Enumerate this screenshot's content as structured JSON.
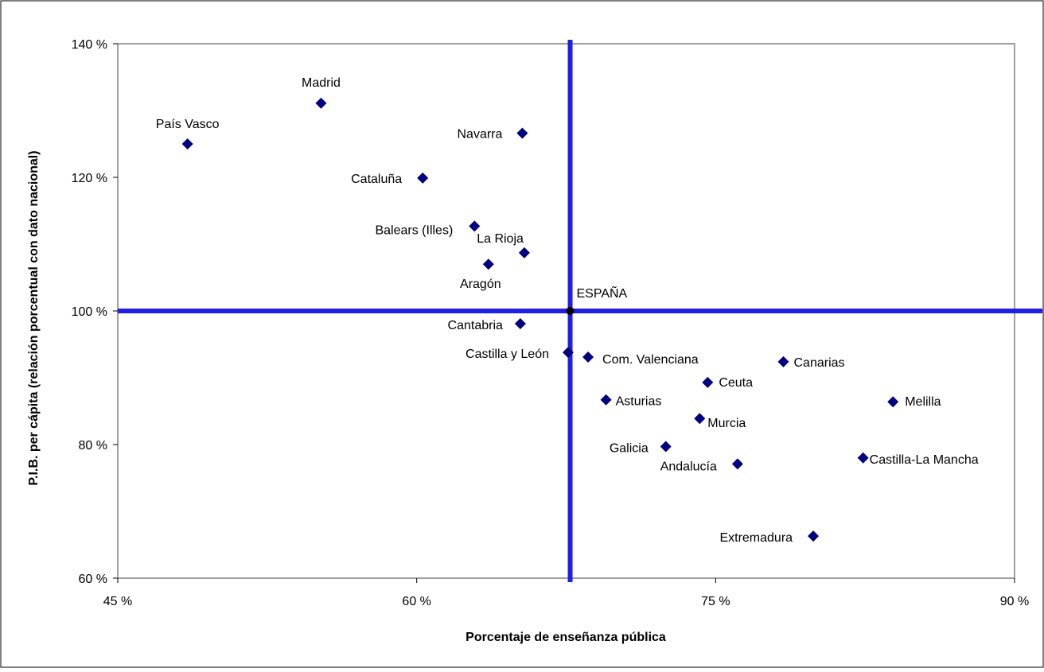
{
  "chart_data": {
    "type": "scatter",
    "title": "",
    "xlabel": "Porcentaje de enseñanza pública",
    "ylabel": "P.I.B. per cápita (relación porcentual con dato nacional)",
    "xlim": [
      45,
      90
    ],
    "ylim": [
      60,
      140
    ],
    "x_ticks": [
      45,
      60,
      75,
      90
    ],
    "y_ticks": [
      60,
      80,
      100,
      120,
      140
    ],
    "x_tick_labels": [
      "45 %",
      "60 %",
      "75 %",
      "90 %"
    ],
    "y_tick_labels": [
      "60 %",
      "80 %",
      "100 %",
      "120 %",
      "140 %"
    ],
    "grid": false,
    "legend": "none",
    "reference_lines": {
      "x": 67.7,
      "y": 100,
      "color": "#1f1fe6"
    },
    "marker_color": "#000080",
    "points": [
      {
        "label": "País Vasco",
        "x": 48.5,
        "y": 125.0
      },
      {
        "label": "Madrid",
        "x": 55.2,
        "y": 131.1
      },
      {
        "label": "Navarra",
        "x": 65.3,
        "y": 126.6
      },
      {
        "label": "Cataluña",
        "x": 60.3,
        "y": 119.9
      },
      {
        "label": "Balears (Illes)",
        "x": 62.9,
        "y": 112.7
      },
      {
        "label": "La Rioja",
        "x": 65.4,
        "y": 108.7
      },
      {
        "label": "Aragón",
        "x": 63.6,
        "y": 107.0
      },
      {
        "label": "ESPAÑA",
        "x": 67.7,
        "y": 100.0
      },
      {
        "label": "Cantabria",
        "x": 65.2,
        "y": 98.1
      },
      {
        "label": "Castilla y León",
        "x": 67.6,
        "y": 93.8
      },
      {
        "label": "Com. Valenciana",
        "x": 68.6,
        "y": 93.1
      },
      {
        "label": "Canarias",
        "x": 78.4,
        "y": 92.4
      },
      {
        "label": "Ceuta",
        "x": 74.6,
        "y": 89.3
      },
      {
        "label": "Asturias",
        "x": 69.5,
        "y": 86.7
      },
      {
        "label": "Melilla",
        "x": 83.9,
        "y": 86.4
      },
      {
        "label": "Murcia",
        "x": 74.2,
        "y": 83.9
      },
      {
        "label": "Galicia",
        "x": 72.5,
        "y": 79.7
      },
      {
        "label": "Castilla-La Mancha",
        "x": 82.4,
        "y": 78.0
      },
      {
        "label": "Andalucía",
        "x": 76.1,
        "y": 77.1
      },
      {
        "label": "Extremadura",
        "x": 79.9,
        "y": 66.3
      }
    ]
  }
}
